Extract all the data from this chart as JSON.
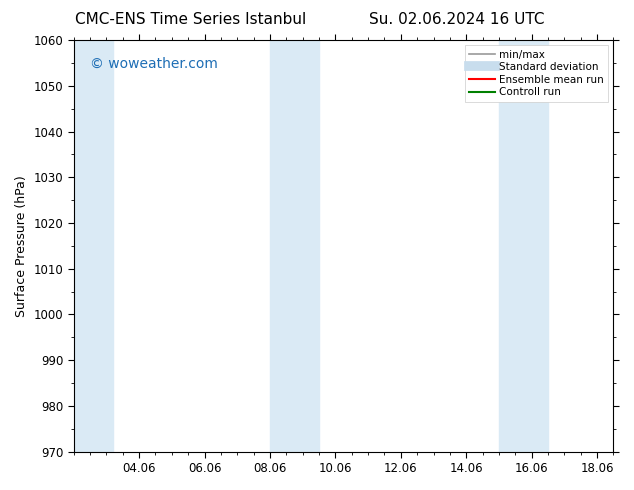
{
  "title_left": "CMC-ENS Time Series Istanbul",
  "title_right": "Su. 02.06.2024 16 UTC",
  "ylabel": "Surface Pressure (hPa)",
  "ylim": [
    970,
    1060
  ],
  "yticks": [
    970,
    980,
    990,
    1000,
    1010,
    1020,
    1030,
    1040,
    1050,
    1060
  ],
  "xlim_start": 2.0,
  "xlim_end": 18.5,
  "xticks": [
    4.0,
    6.0,
    8.0,
    10.0,
    12.0,
    14.0,
    16.0,
    18.0
  ],
  "xticklabels": [
    "04.06",
    "06.06",
    "08.06",
    "10.06",
    "12.06",
    "14.06",
    "16.06",
    "18.06"
  ],
  "shaded_bands": [
    {
      "x_start": 2.0,
      "x_end": 3.2
    },
    {
      "x_start": 8.0,
      "x_end": 9.5
    },
    {
      "x_start": 15.0,
      "x_end": 16.5
    }
  ],
  "band_color": "#daeaf5",
  "watermark": "© woweather.com",
  "watermark_color": "#1e6eb5",
  "legend_items": [
    {
      "label": "min/max",
      "color": "#999999",
      "lw": 1.2,
      "style": "solid"
    },
    {
      "label": "Standard deviation",
      "color": "#c8dded",
      "lw": 7,
      "style": "solid"
    },
    {
      "label": "Ensemble mean run",
      "color": "#ff0000",
      "lw": 1.5,
      "style": "solid"
    },
    {
      "label": "Controll run",
      "color": "#008000",
      "lw": 1.5,
      "style": "solid"
    }
  ],
  "bg_color": "#ffffff",
  "title_fontsize": 11,
  "tick_fontsize": 8.5,
  "label_fontsize": 9,
  "watermark_fontsize": 10
}
